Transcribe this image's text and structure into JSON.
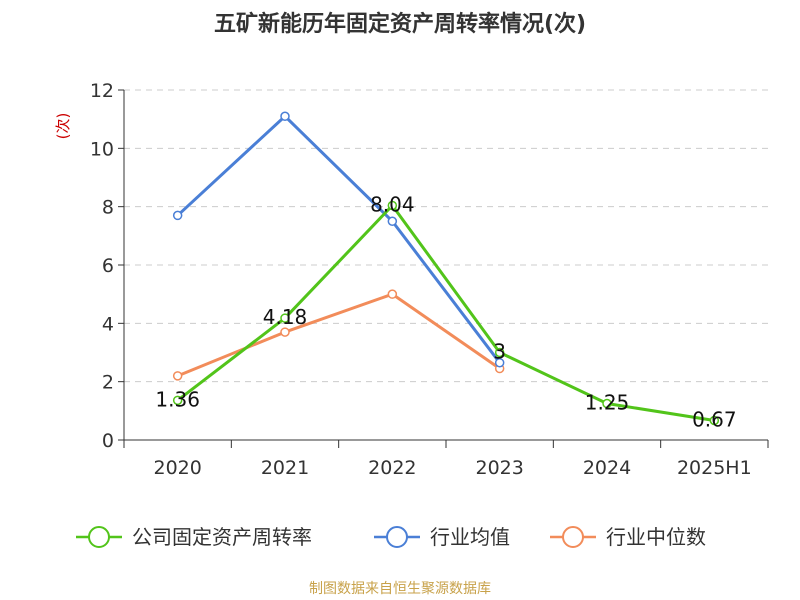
{
  "title": "五矿新能历年固定资产周转率情况(次)",
  "source": "制图数据来自恒生聚源数据库",
  "chart_data": {
    "type": "line",
    "title": "五矿新能历年固定资产周转率情况(次)",
    "ylabel": "(次)",
    "xlabel": "",
    "categories": [
      "2020",
      "2021",
      "2022",
      "2023",
      "2024",
      "2025H1"
    ],
    "ylim": [
      0,
      12
    ],
    "yticks": [
      0,
      2,
      4,
      6,
      8,
      10,
      12
    ],
    "grid": true,
    "legend_position": "bottom",
    "series": [
      {
        "name": "公司固定资产周转率",
        "color": "#52c41a",
        "values": [
          1.36,
          4.18,
          8.04,
          3,
          1.25,
          0.67
        ],
        "labels": [
          "1.36",
          "4.18",
          "8.04",
          "3",
          "1.25",
          "0.67"
        ]
      },
      {
        "name": "行业均值",
        "color": "#4a7fd6",
        "values": [
          7.7,
          11.1,
          7.5,
          2.65,
          null,
          null
        ]
      },
      {
        "name": "行业中位数",
        "color": "#f28c5a",
        "values": [
          2.2,
          3.7,
          5.0,
          2.45,
          null,
          null
        ]
      }
    ]
  }
}
